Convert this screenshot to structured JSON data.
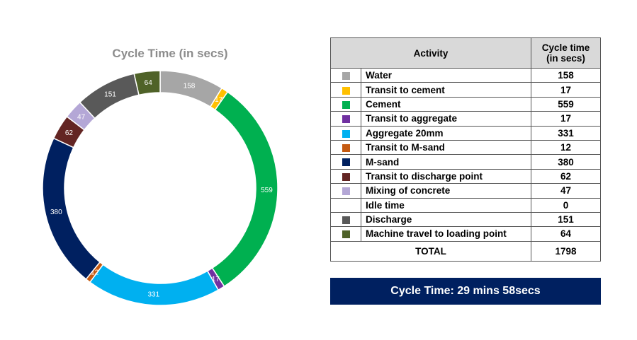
{
  "chart_data": {
    "type": "pie",
    "variant": "donut",
    "title": "Cycle Time (in secs)",
    "categories": [
      "Water",
      "Transit to cement",
      "Cement",
      "Transit to aggregate",
      "Aggregate 20mm",
      "Transit to M-sand",
      "M-sand",
      "Transit to discharge point",
      "Mixing of concrete",
      "Idle time",
      "Discharge",
      "Machine travel to loading point"
    ],
    "values": [
      158,
      17,
      559,
      17,
      331,
      12,
      380,
      62,
      47,
      0,
      151,
      64
    ],
    "colors": [
      "#a6a6a6",
      "#ffc000",
      "#00b050",
      "#7030a0",
      "#00b0f0",
      "#c55a11",
      "#002060",
      "#632523",
      "#b4a7d6",
      "#ffffff",
      "#595959",
      "#4f6228"
    ],
    "data_labels": [
      "158",
      "17",
      "559",
      "17",
      "331",
      "12",
      "380",
      "62",
      "47",
      "",
      "151",
      "64"
    ],
    "legend": "table-right"
  },
  "table": {
    "header_activity": "Activity",
    "header_cycle": "Cycle time\n(in secs)",
    "total_label": "TOTAL",
    "total_value": "1798"
  },
  "banner": {
    "text": "Cycle Time: 29 mins 58secs"
  }
}
